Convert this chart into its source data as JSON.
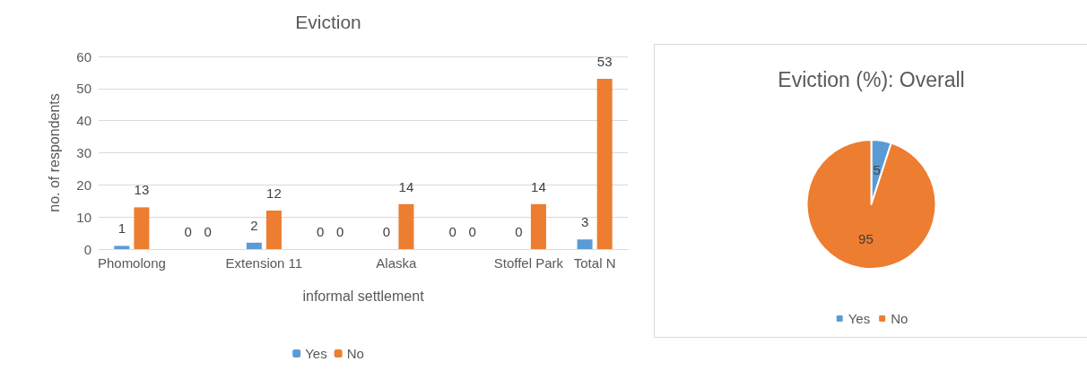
{
  "chart_data": [
    {
      "type": "bar",
      "title": "Eviction",
      "xlabel": "informal settlement",
      "ylabel": "no. of respondents",
      "categories": [
        "Phomolong",
        null,
        "Extension 11",
        null,
        "Alaska",
        null,
        "Stoffel Park",
        "Total N"
      ],
      "series": [
        {
          "name": "Yes",
          "color": "#5b9bd5",
          "values": [
            1,
            0,
            2,
            0,
            0,
            0,
            0,
            3
          ]
        },
        {
          "name": "No",
          "color": "#ed7d31",
          "values": [
            13,
            0,
            12,
            0,
            14,
            0,
            14,
            53
          ]
        }
      ],
      "ylim": [
        0,
        60
      ],
      "yticks": [
        0,
        10,
        20,
        30,
        40,
        50,
        60
      ],
      "grid": "y",
      "legend": "bottom",
      "data_labels": true
    },
    {
      "type": "pie",
      "title": "Eviction (%): Overall",
      "categories": [
        "Yes",
        "No"
      ],
      "values": [
        5,
        95
      ],
      "colors": [
        "#5b9bd5",
        "#ed7d31"
      ],
      "legend": "bottom",
      "data_labels": true
    }
  ]
}
